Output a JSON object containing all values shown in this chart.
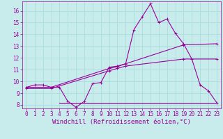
{
  "xlabel": "Windchill (Refroidissement éolien,°C)",
  "background_color": "#c8ecec",
  "grid_color": "#aadddd",
  "line_color": "#990099",
  "xlim": [
    -0.5,
    23.5
  ],
  "ylim": [
    7.7,
    16.8
  ],
  "yticks": [
    8,
    9,
    10,
    11,
    12,
    13,
    14,
    15,
    16
  ],
  "xticks": [
    0,
    1,
    2,
    3,
    4,
    5,
    6,
    7,
    8,
    9,
    10,
    11,
    12,
    13,
    14,
    15,
    16,
    17,
    18,
    19,
    20,
    21,
    22,
    23
  ],
  "line1_x": [
    0,
    1,
    2,
    3,
    4,
    5,
    6,
    7,
    8,
    9,
    10,
    11,
    12,
    13,
    14,
    15,
    16,
    17,
    18,
    19,
    20,
    21,
    22,
    23
  ],
  "line1_y": [
    9.5,
    9.7,
    9.7,
    9.5,
    9.5,
    8.3,
    7.8,
    8.3,
    9.8,
    9.9,
    11.2,
    11.3,
    11.5,
    14.4,
    15.5,
    16.6,
    15.0,
    15.3,
    14.1,
    13.2,
    11.9,
    9.7,
    9.2,
    8.2
  ],
  "line2_x": [
    0,
    3,
    10,
    11,
    12,
    19,
    23
  ],
  "line2_y": [
    9.5,
    9.5,
    11.1,
    11.25,
    11.5,
    13.1,
    13.2
  ],
  "line3_x": [
    0,
    3,
    10,
    11,
    12,
    19,
    23
  ],
  "line3_y": [
    9.4,
    9.4,
    10.9,
    11.1,
    11.3,
    11.9,
    11.9
  ],
  "line4_x": [
    4,
    13,
    23
  ],
  "line4_y": [
    8.2,
    8.2,
    8.2
  ],
  "font_color": "#990099",
  "tick_fontsize": 5.5,
  "label_fontsize": 6.5
}
